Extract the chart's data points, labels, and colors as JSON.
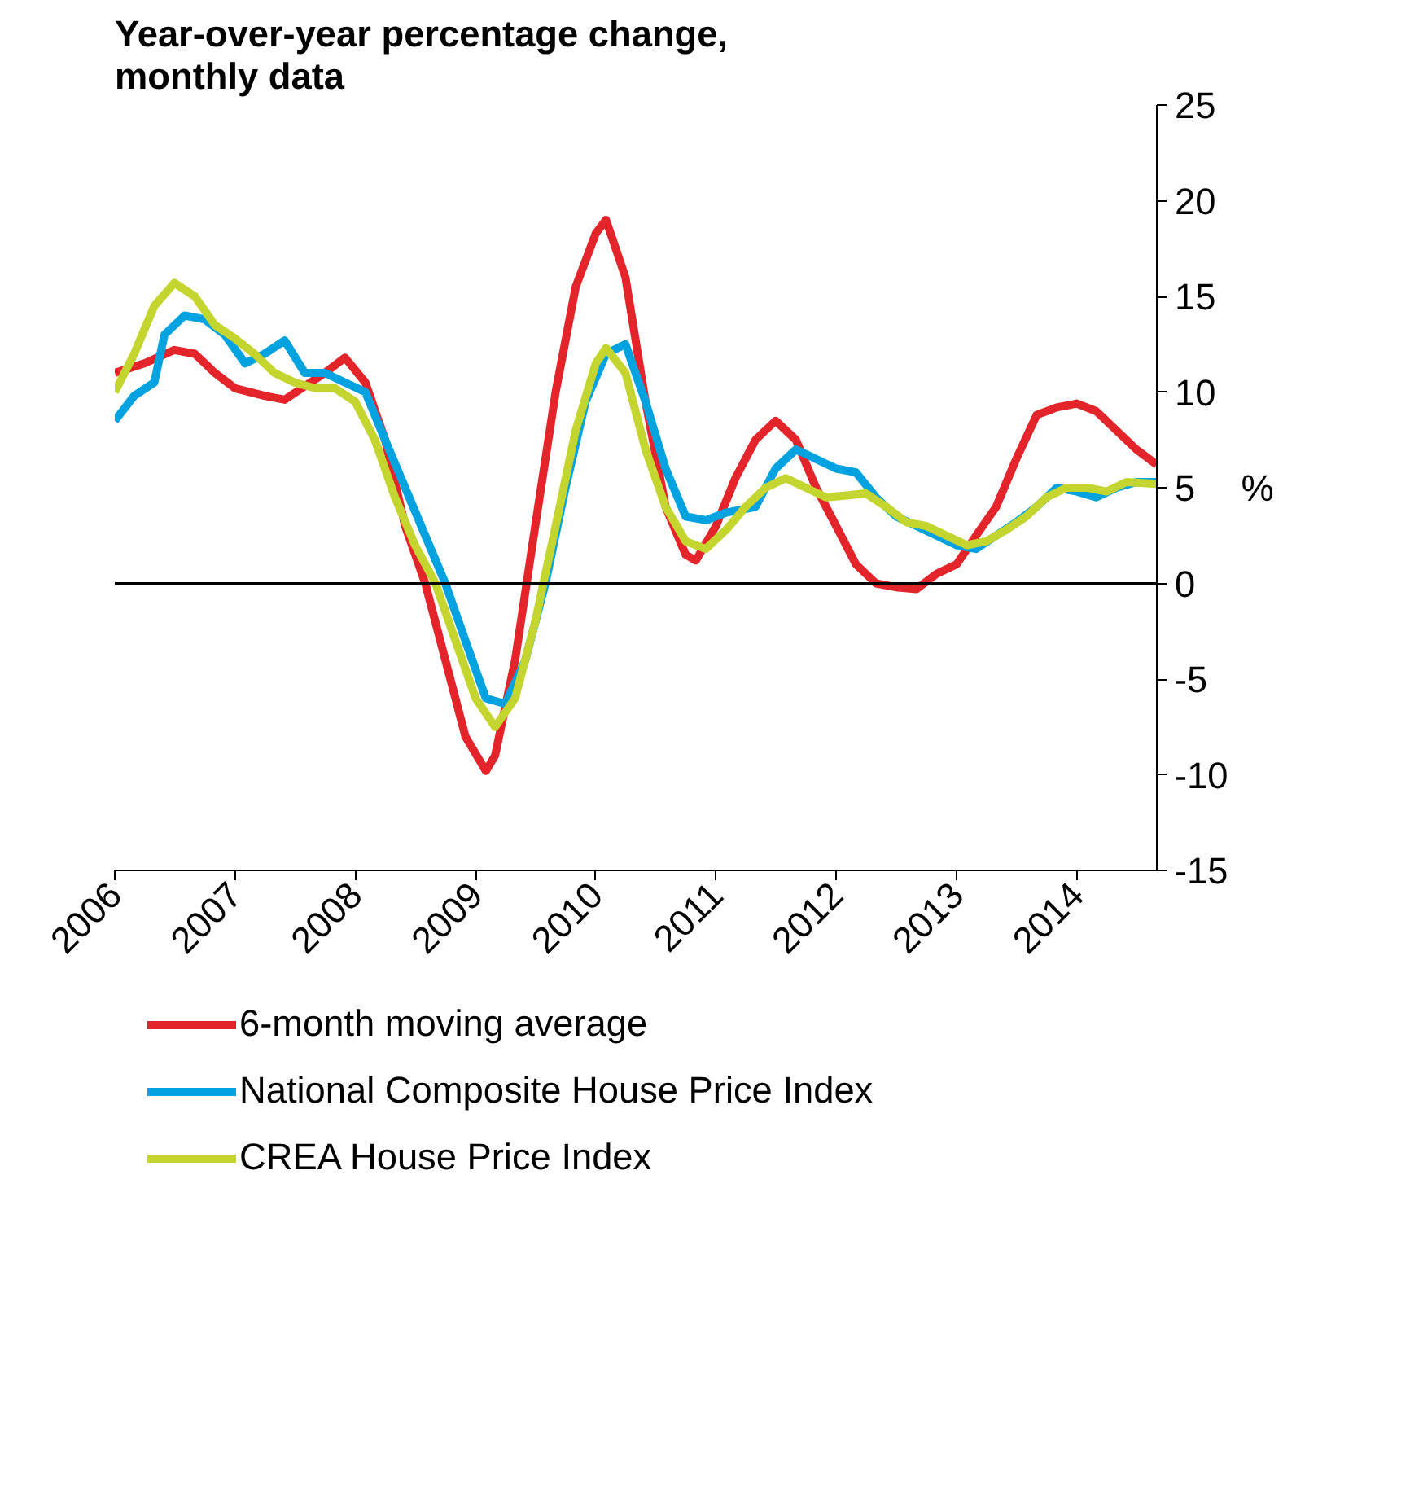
{
  "chart_data": {
    "type": "line",
    "title": "Year-over-year percentage change,\nmonthly data",
    "ylabel": "%",
    "xlim": [
      "2006-01",
      "2014-09"
    ],
    "xticks": [
      "2006",
      "2007",
      "2008",
      "2009",
      "2010",
      "2011",
      "2012",
      "2013",
      "2014"
    ],
    "ylim": [
      -15,
      25
    ],
    "yticks": [
      -15,
      -10,
      -5,
      0,
      5,
      10,
      15,
      20,
      25
    ],
    "grid": false,
    "legend": "bottom",
    "line_style": "solid",
    "marker": "none",
    "ref_lines": [
      {
        "axis": "y",
        "value": 0,
        "color": "#000000"
      }
    ],
    "series": [
      {
        "name": "6-month moving average",
        "color": "#e3242b",
        "x": [
          "2006-01",
          "2006-04",
          "2006-07",
          "2006-09",
          "2006-11",
          "2007-01",
          "2007-04",
          "2007-06",
          "2007-08",
          "2007-10",
          "2007-12",
          "2008-02",
          "2008-04",
          "2008-06",
          "2008-08",
          "2008-10",
          "2008-12",
          "2009-02",
          "2009-03",
          "2009-05",
          "2009-07",
          "2009-09",
          "2009-11",
          "2010-01",
          "2010-02",
          "2010-04",
          "2010-06",
          "2010-08",
          "2010-10",
          "2010-11",
          "2011-01",
          "2011-03",
          "2011-05",
          "2011-07",
          "2011-09",
          "2011-11",
          "2012-01",
          "2012-03",
          "2012-05",
          "2012-07",
          "2012-09",
          "2012-11",
          "2013-01",
          "2013-03",
          "2013-05",
          "2013-07",
          "2013-09",
          "2013-11",
          "2014-01",
          "2014-03",
          "2014-05",
          "2014-07",
          "2014-09"
        ],
        "values": [
          11,
          11.5,
          12.2,
          12,
          11,
          10.2,
          9.8,
          9.6,
          10.3,
          11,
          11.8,
          10.5,
          7.5,
          3,
          0,
          -4,
          -8,
          -9.8,
          -9,
          -4,
          3,
          10,
          15.5,
          18.3,
          19,
          16,
          9.5,
          4,
          1.5,
          1.2,
          3,
          5.5,
          7.5,
          8.5,
          7.5,
          5,
          3,
          1,
          0,
          -0.2,
          -0.3,
          0.5,
          1,
          2.5,
          4,
          6.5,
          8.8,
          9.2,
          9.4,
          9,
          8,
          7,
          6.2
        ]
      },
      {
        "name": "National Composite House Price Index",
        "color": "#00a3e0",
        "x": [
          "2006-01",
          "2006-03",
          "2006-05",
          "2006-06",
          "2006-08",
          "2006-10",
          "2006-12",
          "2007-02",
          "2007-04",
          "2007-06",
          "2007-08",
          "2007-10",
          "2007-12",
          "2008-02",
          "2008-04",
          "2008-06",
          "2008-08",
          "2008-10",
          "2008-12",
          "2009-02",
          "2009-04",
          "2009-06",
          "2009-08",
          "2009-10",
          "2009-12",
          "2010-02",
          "2010-04",
          "2010-06",
          "2010-08",
          "2010-10",
          "2010-12",
          "2011-02",
          "2011-05",
          "2011-07",
          "2011-09",
          "2011-11",
          "2012-01",
          "2012-03",
          "2012-05",
          "2012-07",
          "2012-09",
          "2012-11",
          "2013-01",
          "2013-03",
          "2013-05",
          "2013-07",
          "2013-09",
          "2013-11",
          "2014-01",
          "2014-03",
          "2014-05",
          "2014-07",
          "2014-09"
        ],
        "values": [
          8.5,
          9.8,
          10.5,
          13,
          14,
          13.8,
          13,
          11.5,
          12,
          12.7,
          11,
          11,
          10.5,
          10,
          7.5,
          5,
          2.5,
          0,
          -3,
          -6,
          -6.3,
          -4,
          0,
          5,
          9.5,
          12,
          12.5,
          9.5,
          6,
          3.5,
          3.3,
          3.7,
          4,
          6,
          7,
          6.5,
          6,
          5.8,
          4.5,
          3.5,
          3,
          2.5,
          2,
          1.8,
          2.5,
          3.2,
          4,
          5,
          4.8,
          4.5,
          5,
          5.3,
          5.3
        ]
      },
      {
        "name": "CREA House Price Index",
        "color": "#c3d52e",
        "x": [
          "2006-01",
          "2006-03",
          "2006-05",
          "2006-07",
          "2006-09",
          "2006-11",
          "2007-01",
          "2007-03",
          "2007-05",
          "2007-07",
          "2007-09",
          "2007-11",
          "2008-01",
          "2008-03",
          "2008-05",
          "2008-07",
          "2008-09",
          "2008-11",
          "2009-01",
          "2009-03",
          "2009-05",
          "2009-07",
          "2009-09",
          "2009-11",
          "2010-01",
          "2010-02",
          "2010-04",
          "2010-06",
          "2010-08",
          "2010-10",
          "2010-12",
          "2011-02",
          "2011-04",
          "2011-06",
          "2011-08",
          "2011-10",
          "2011-12",
          "2012-02",
          "2012-04",
          "2012-06",
          "2012-08",
          "2012-10",
          "2012-12",
          "2013-02",
          "2013-04",
          "2013-06",
          "2013-08",
          "2013-10",
          "2013-12",
          "2014-02",
          "2014-04",
          "2014-06",
          "2014-09"
        ],
        "values": [
          10,
          12,
          14.5,
          15.7,
          15,
          13.5,
          12.8,
          12,
          11,
          10.5,
          10.2,
          10.2,
          9.5,
          7.5,
          4.5,
          2,
          0,
          -3,
          -6,
          -7.5,
          -6,
          -2,
          3,
          8,
          11.5,
          12.3,
          11,
          7,
          4,
          2.2,
          1.8,
          2.8,
          4,
          5,
          5.5,
          5,
          4.5,
          4.6,
          4.7,
          4,
          3.2,
          3,
          2.5,
          2,
          2.2,
          2.8,
          3.5,
          4.5,
          5,
          5,
          4.8,
          5.3,
          5.2
        ]
      }
    ]
  }
}
